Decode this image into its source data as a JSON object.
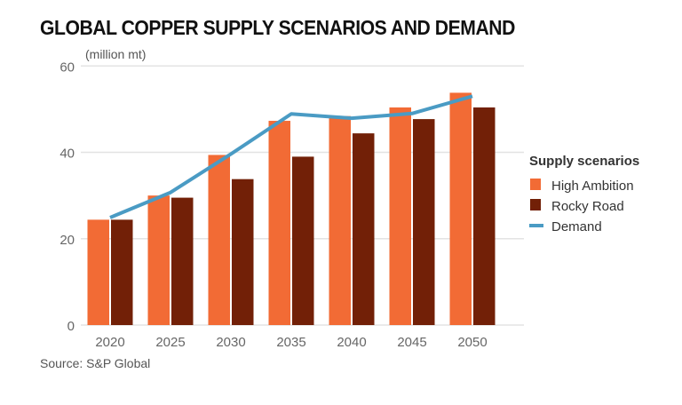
{
  "chart_data": {
    "type": "bar",
    "title": "GLOBAL COPPER SUPPLY SCENARIOS AND DEMAND",
    "ylabel": "(million mt)",
    "categories": [
      "2020",
      "2025",
      "2030",
      "2035",
      "2040",
      "2045",
      "2050"
    ],
    "ylim": [
      0,
      60
    ],
    "yticks": [
      0,
      20,
      40,
      60
    ],
    "grid": true,
    "legend": {
      "title": "Supply scenarios",
      "placement": "right"
    },
    "series": [
      {
        "name": "High Ambition",
        "type": "bar",
        "color": "#f26b35",
        "values": [
          24.4,
          30.0,
          39.4,
          47.3,
          48.4,
          50.4,
          53.8
        ]
      },
      {
        "name": "Rocky Road",
        "type": "bar",
        "color": "#722007",
        "values": [
          24.4,
          29.5,
          33.8,
          39.0,
          44.4,
          47.7,
          50.4
        ]
      },
      {
        "name": "Demand",
        "type": "line",
        "color": "#4a9bc4",
        "values": [
          24.9,
          30.7,
          39.6,
          48.9,
          47.9,
          49.0,
          53.0
        ]
      }
    ],
    "source": "Source: S&P Global"
  }
}
